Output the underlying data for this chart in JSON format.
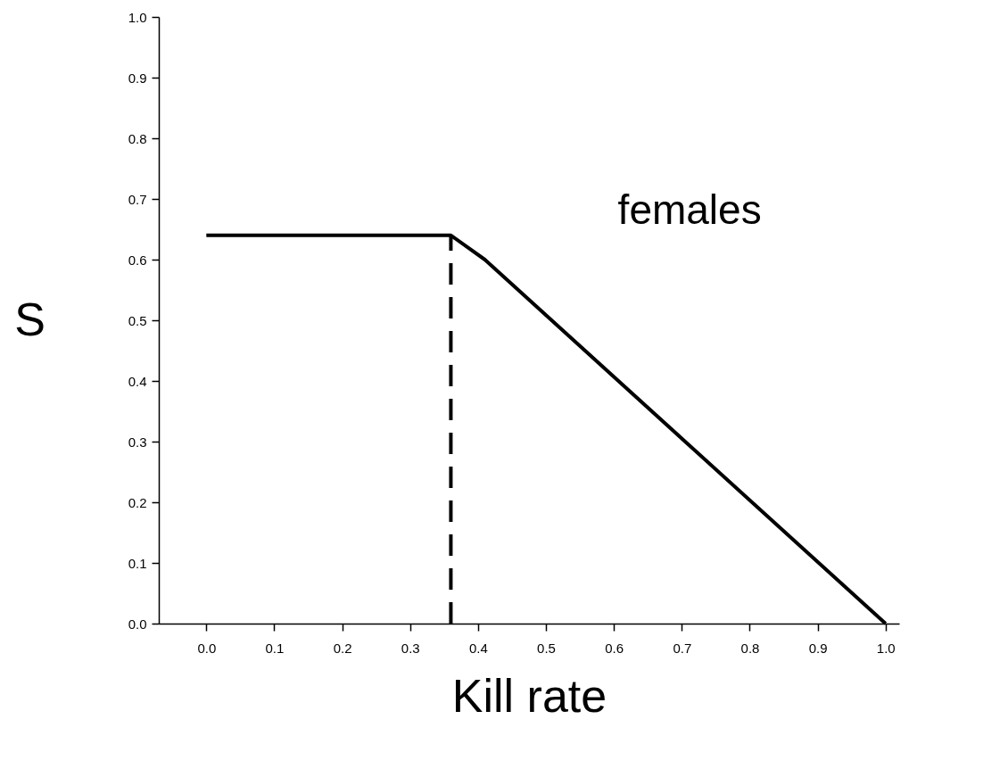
{
  "chart_data": {
    "type": "line",
    "xlabel": "Kill rate",
    "ylabel": "S",
    "annotations": [
      "females"
    ],
    "xlim": [
      -0.07,
      1.02
    ],
    "ylim": [
      0,
      1
    ],
    "xticks": [
      {
        "value": 0,
        "label": "0.0"
      },
      {
        "value": 0.1,
        "label": "0.1"
      },
      {
        "value": 0.2,
        "label": "0.2"
      },
      {
        "value": 0.3,
        "label": "0.3"
      },
      {
        "value": 0.4,
        "label": "0.4"
      },
      {
        "value": 0.5,
        "label": "0.5"
      },
      {
        "value": 0.6,
        "label": "0.6"
      },
      {
        "value": 0.7,
        "label": "0.7"
      },
      {
        "value": 0.8,
        "label": "0.8"
      },
      {
        "value": 0.9,
        "label": "0.9"
      },
      {
        "value": 1,
        "label": "1.0"
      }
    ],
    "yticks": [
      {
        "value": 0,
        "label": "0.0"
      },
      {
        "value": 0.1,
        "label": "0.1"
      },
      {
        "value": 0.2,
        "label": "0.2"
      },
      {
        "value": 0.3,
        "label": "0.3"
      },
      {
        "value": 0.4,
        "label": "0.4"
      },
      {
        "value": 0.5,
        "label": "0.5"
      },
      {
        "value": 0.6,
        "label": "0.6"
      },
      {
        "value": 0.7,
        "label": "0.7"
      },
      {
        "value": 0.8,
        "label": "0.8"
      },
      {
        "value": 0.9,
        "label": "0.9"
      },
      {
        "value": 1,
        "label": "1.0"
      }
    ],
    "grid": false,
    "series": [
      {
        "color": "#000000",
        "x": [
          0,
          0.36,
          0.41,
          1.0
        ],
        "values": [
          0.64,
          0.64,
          0.6,
          0.0
        ]
      },
      {
        "color": "#000000",
        "line_style": "dashed",
        "x": [
          0.36,
          0.36
        ],
        "values": [
          0,
          0.64
        ]
      }
    ]
  }
}
